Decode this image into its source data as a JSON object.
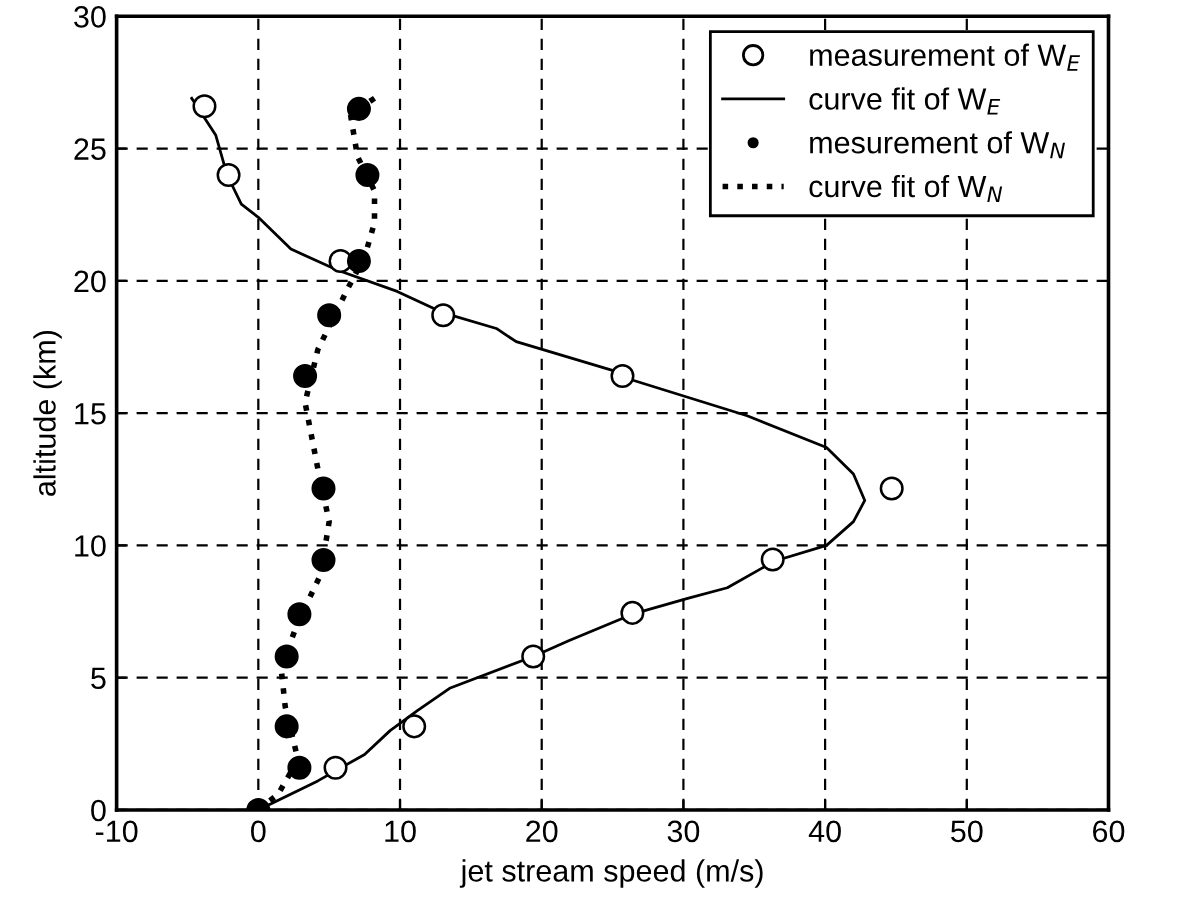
{
  "chart_data": {
    "type": "scatter",
    "xlabel": "jet stream speed (m/s)",
    "ylabel": "altitude (km)",
    "xlim": [
      -10,
      60
    ],
    "ylim": [
      0,
      30
    ],
    "xticks": [
      -10,
      0,
      10,
      20,
      30,
      40,
      50,
      60
    ],
    "yticks": [
      0,
      5,
      10,
      15,
      20,
      25,
      30
    ],
    "grid": true,
    "legend": "top right",
    "series": [
      {
        "name": "measurement of W$_{E}$",
        "marker": "circle",
        "color": "#ffffff",
        "x": [
          -3.8,
          -2.1,
          5.8,
          13.05,
          25.7,
          44.7,
          36.3,
          26.4,
          19.4,
          11.0,
          5.45
        ],
        "values": [
          26.6,
          24.0,
          20.75,
          18.7,
          16.4,
          12.15,
          9.47,
          7.45,
          5.8,
          3.16,
          1.6
        ]
      },
      {
        "name": "curve fit of W$_{E}$",
        "type": "line",
        "line_style": "solid",
        "color": "#000000",
        "x": [
          -4.7,
          -3.0,
          -2.2,
          -1.2,
          0,
          2.3,
          5.6,
          9.8,
          13,
          16.8,
          18.2,
          25.7,
          26.1,
          34.5,
          40.1,
          42.0,
          42.8,
          42.0,
          40.1,
          36.4,
          33.1,
          30.3,
          26.4,
          21.9,
          19.4,
          13.5,
          11.2,
          9.3,
          7.5,
          4.2,
          0
        ],
        "values": [
          26.9,
          25.5,
          24.0,
          22.9,
          22.4,
          21.2,
          20.4,
          19.6,
          18.8,
          18.2,
          17.7,
          16.5,
          16.3,
          14.9,
          13.7,
          12.7,
          11.7,
          10.9,
          10.0,
          9.4,
          8.4,
          8.0,
          7.4,
          6.4,
          5.8,
          4.6,
          3.75,
          3.0,
          2.1,
          1.1,
          0
        ]
      },
      {
        "name": "mesurement of W$_{N}$",
        "marker": "circle",
        "color": "#000000",
        "x": [
          7.1,
          7.7,
          7.1,
          5.0,
          3.3,
          4.6,
          4.6,
          2.9,
          2.0,
          2.0,
          2.9,
          0
        ],
        "values": [
          26.5,
          24.0,
          20.75,
          18.7,
          16.4,
          12.15,
          9.45,
          7.4,
          5.8,
          3.16,
          1.6,
          0
        ]
      },
      {
        "name": "curve fit of W$_{N}$",
        "type": "line",
        "line_style": "dotted",
        "color": "#000000",
        "x": [
          8.2,
          6.5,
          7.0,
          8.2,
          8.2,
          7.5,
          6.3,
          4.2,
          3.3,
          4.2,
          5.0,
          4.4,
          2.8,
          1.6,
          1.9,
          2.8,
          1.4,
          0
        ],
        "values": [
          26.9,
          26.3,
          24.7,
          23.4,
          22.2,
          20.9,
          19.7,
          17.4,
          15.4,
          12.9,
          10.9,
          8.9,
          7.1,
          5.4,
          3.9,
          1.9,
          0.6,
          0
        ]
      }
    ]
  }
}
